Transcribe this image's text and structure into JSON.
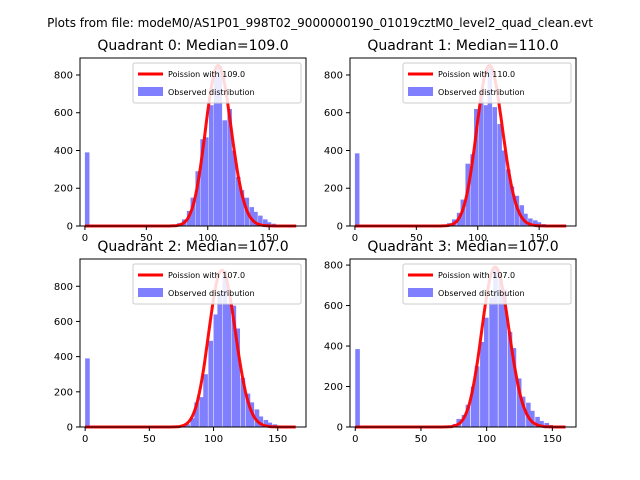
{
  "suptitle": "Plots from file: modeM0/AS1P01_998T02_9000000190_01019cztM0_level2_quad_clean.evt",
  "chart_data": [
    {
      "type": "bar",
      "title": "Quadrant 0: Median=109.0",
      "median": 109.0,
      "xlim": [
        -4,
        180
      ],
      "ylim": [
        0,
        890
      ],
      "xticks": [
        0,
        50,
        100,
        150
      ],
      "yticks": [
        0,
        200,
        400,
        600,
        800
      ],
      "legend": [
        "Poission with 109.0",
        "Observed distribution"
      ],
      "poisson_peak": 850,
      "bins": [
        [
          0,
          3.7,
          390
        ],
        [
          70,
          3.7,
          5
        ],
        [
          75,
          3.7,
          15
        ],
        [
          79,
          3.7,
          35
        ],
        [
          83,
          3.7,
          80
        ],
        [
          86,
          3.7,
          150
        ],
        [
          90,
          3.7,
          290
        ],
        [
          94,
          3.7,
          460
        ],
        [
          97,
          3.7,
          470
        ],
        [
          101,
          3.7,
          640
        ],
        [
          105,
          3.7,
          790
        ],
        [
          108,
          3.7,
          850
        ],
        [
          112,
          3.7,
          560
        ],
        [
          116,
          3.7,
          620
        ],
        [
          119,
          3.7,
          400
        ],
        [
          123,
          3.7,
          260
        ],
        [
          126,
          3.7,
          190
        ],
        [
          130,
          3.7,
          150
        ],
        [
          134,
          3.7,
          100
        ],
        [
          137,
          3.7,
          75
        ],
        [
          141,
          3.7,
          55
        ],
        [
          145,
          3.7,
          35
        ],
        [
          148,
          3.7,
          20
        ],
        [
          152,
          3.7,
          12
        ],
        [
          156,
          3.7,
          6
        ]
      ]
    },
    {
      "type": "bar",
      "title": "Quadrant 1: Median=110.0",
      "median": 110.0,
      "xlim": [
        -4,
        180
      ],
      "ylim": [
        0,
        890
      ],
      "xticks": [
        0,
        50,
        100,
        150
      ],
      "yticks": [
        0,
        200,
        400,
        600,
        800
      ],
      "legend": [
        "Poission with 110.0",
        "Observed distribution"
      ],
      "poisson_peak": 850,
      "bins": [
        [
          0,
          3.7,
          385
        ],
        [
          70,
          3.7,
          5
        ],
        [
          75,
          3.7,
          15
        ],
        [
          79,
          3.7,
          35
        ],
        [
          83,
          3.7,
          70
        ],
        [
          86,
          3.7,
          140
        ],
        [
          90,
          3.7,
          330
        ],
        [
          94,
          3.7,
          380
        ],
        [
          97,
          3.7,
          620
        ],
        [
          101,
          3.7,
          720
        ],
        [
          105,
          3.7,
          640
        ],
        [
          108,
          3.7,
          850
        ],
        [
          112,
          3.7,
          630
        ],
        [
          116,
          3.7,
          540
        ],
        [
          119,
          3.7,
          400
        ],
        [
          123,
          3.7,
          300
        ],
        [
          126,
          3.7,
          210
        ],
        [
          130,
          3.7,
          160
        ],
        [
          134,
          3.7,
          110
        ],
        [
          137,
          3.7,
          65
        ],
        [
          141,
          3.7,
          40
        ],
        [
          145,
          3.7,
          30
        ],
        [
          148,
          3.7,
          20
        ],
        [
          152,
          3.7,
          10
        ]
      ]
    },
    {
      "type": "bar",
      "title": "Quadrant 2: Median=107.0",
      "median": 107.0,
      "xlim": [
        -4,
        172
      ],
      "ylim": [
        0,
        955
      ],
      "xticks": [
        0,
        50,
        100,
        150
      ],
      "yticks": [
        0,
        200,
        400,
        600,
        800
      ],
      "legend": [
        "Poission with 107.0",
        "Observed distribution"
      ],
      "poisson_peak": 890,
      "bins": [
        [
          0,
          3.6,
          390
        ],
        [
          74,
          3.6,
          5
        ],
        [
          78,
          3.6,
          15
        ],
        [
          82,
          3.6,
          50
        ],
        [
          85,
          3.6,
          140
        ],
        [
          89,
          3.6,
          170
        ],
        [
          92,
          3.6,
          300
        ],
        [
          96,
          3.6,
          490
        ],
        [
          100,
          3.6,
          640
        ],
        [
          103,
          3.6,
          760
        ],
        [
          107,
          3.6,
          890
        ],
        [
          110,
          3.6,
          700
        ],
        [
          114,
          3.6,
          690
        ],
        [
          117,
          3.6,
          560
        ],
        [
          121,
          3.6,
          280
        ],
        [
          125,
          3.6,
          190
        ],
        [
          128,
          3.6,
          140
        ],
        [
          132,
          3.6,
          100
        ],
        [
          135,
          3.6,
          60
        ],
        [
          139,
          3.6,
          40
        ],
        [
          142,
          3.6,
          25
        ],
        [
          146,
          3.6,
          15
        ],
        [
          150,
          3.6,
          8
        ]
      ]
    },
    {
      "type": "bar",
      "title": "Quadrant 3: Median=107.0",
      "median": 107.0,
      "xlim": [
        -4,
        168
      ],
      "ylim": [
        0,
        830
      ],
      "xticks": [
        0,
        50,
        100,
        150
      ],
      "yticks": [
        0,
        200,
        400,
        600,
        800
      ],
      "legend": [
        "Poission with 107.0",
        "Observed distribution"
      ],
      "poisson_peak": 790,
      "bins": [
        [
          0,
          3.5,
          385
        ],
        [
          70,
          3.5,
          5
        ],
        [
          74,
          3.5,
          15
        ],
        [
          77,
          3.5,
          40
        ],
        [
          81,
          3.5,
          60
        ],
        [
          84,
          3.5,
          110
        ],
        [
          88,
          3.5,
          200
        ],
        [
          91,
          3.5,
          300
        ],
        [
          95,
          3.5,
          420
        ],
        [
          98,
          3.5,
          540
        ],
        [
          102,
          3.5,
          640
        ],
        [
          105,
          3.5,
          790
        ],
        [
          109,
          3.5,
          730
        ],
        [
          112,
          3.5,
          680
        ],
        [
          116,
          3.5,
          470
        ],
        [
          119,
          3.5,
          390
        ],
        [
          123,
          3.5,
          240
        ],
        [
          126,
          3.5,
          150
        ],
        [
          130,
          3.5,
          120
        ],
        [
          133,
          3.5,
          80
        ],
        [
          137,
          3.5,
          50
        ],
        [
          140,
          3.5,
          30
        ],
        [
          144,
          3.5,
          20
        ],
        [
          147,
          3.5,
          10
        ]
      ]
    }
  ]
}
